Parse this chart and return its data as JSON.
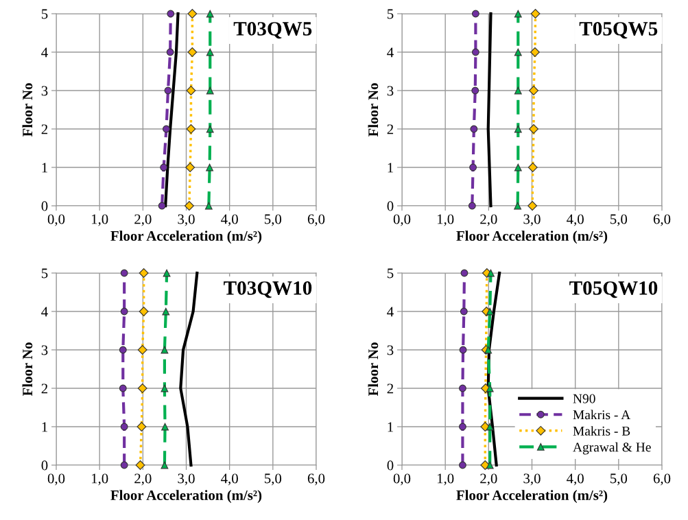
{
  "chart_data": [
    {
      "type": "line",
      "title": "T03QW5",
      "xlabel": "Floor Acceleration (m/s²)",
      "ylabel": "Floor No",
      "xlim": [
        0,
        6
      ],
      "xticks": [
        {
          "value": 0,
          "label": "0,0"
        },
        {
          "value": 1,
          "label": "1,0"
        },
        {
          "value": 2,
          "label": "2,0"
        },
        {
          "value": 3,
          "label": "3,0"
        },
        {
          "value": 4,
          "label": "4,0"
        },
        {
          "value": 5,
          "label": "5,0"
        },
        {
          "value": 6,
          "label": "6,0"
        }
      ],
      "ylim": [
        0,
        5
      ],
      "yticks": [
        0,
        1,
        2,
        3,
        4,
        5
      ],
      "grid": true,
      "legend": false,
      "series": [
        {
          "color": "#000000",
          "marker": "none",
          "line_style": "solid",
          "x": [
            2.52,
            2.57,
            2.63,
            2.7,
            2.77,
            2.81
          ],
          "values": [
            0,
            1,
            2,
            3,
            4,
            5
          ]
        },
        {
          "color": "#7030a0",
          "marker": "circle",
          "line_style": "dashed",
          "x": [
            2.44,
            2.48,
            2.54,
            2.58,
            2.63,
            2.64
          ],
          "values": [
            0,
            1,
            2,
            3,
            4,
            5
          ]
        },
        {
          "color": "#ffc000",
          "marker": "diamond",
          "line_style": "dotted",
          "x": [
            3.07,
            3.09,
            3.11,
            3.11,
            3.14,
            3.14
          ],
          "values": [
            0,
            1,
            2,
            3,
            4,
            5
          ]
        },
        {
          "color": "#00b050",
          "marker": "triangle",
          "line_style": "dashed",
          "x": [
            3.52,
            3.54,
            3.55,
            3.55,
            3.55,
            3.55
          ],
          "values": [
            0,
            1,
            2,
            3,
            4,
            5
          ]
        }
      ]
    },
    {
      "type": "line",
      "title": "T05QW5",
      "xlabel": "Floor Acceleration (m/s²)",
      "ylabel": "Floor No",
      "xlim": [
        0,
        6
      ],
      "xticks": [
        {
          "value": 0,
          "label": "0,0"
        },
        {
          "value": 1,
          "label": "1,0"
        },
        {
          "value": 2,
          "label": "2,0"
        },
        {
          "value": 3,
          "label": "3,0"
        },
        {
          "value": 4,
          "label": "4,0"
        },
        {
          "value": 5,
          "label": "5,0"
        },
        {
          "value": 6,
          "label": "6,0"
        }
      ],
      "ylim": [
        0,
        5
      ],
      "yticks": [
        0,
        1,
        2,
        3,
        4,
        5
      ],
      "grid": true,
      "legend": false,
      "series": [
        {
          "color": "#000000",
          "marker": "none",
          "line_style": "solid",
          "x": [
            2.05,
            2.02,
            1.99,
            2.01,
            2.03,
            2.05
          ],
          "values": [
            0,
            1,
            2,
            3,
            4,
            5
          ]
        },
        {
          "color": "#7030a0",
          "marker": "circle",
          "line_style": "dashed",
          "x": [
            1.62,
            1.64,
            1.66,
            1.69,
            1.7,
            1.7
          ],
          "values": [
            0,
            1,
            2,
            3,
            4,
            5
          ]
        },
        {
          "color": "#ffc000",
          "marker": "diamond",
          "line_style": "dotted",
          "x": [
            3.01,
            3.02,
            3.04,
            3.04,
            3.07,
            3.08
          ],
          "values": [
            0,
            1,
            2,
            3,
            4,
            5
          ]
        },
        {
          "color": "#00b050",
          "marker": "triangle",
          "line_style": "dashed",
          "x": [
            2.67,
            2.68,
            2.68,
            2.68,
            2.68,
            2.68
          ],
          "values": [
            0,
            1,
            2,
            3,
            4,
            5
          ]
        }
      ]
    },
    {
      "type": "line",
      "title": "T03QW10",
      "xlabel": "Floor Acceleration (m/s²)",
      "ylabel": "Floor No",
      "xlim": [
        0,
        6
      ],
      "xticks": [
        {
          "value": 0,
          "label": "0,0"
        },
        {
          "value": 1,
          "label": "1,0"
        },
        {
          "value": 2,
          "label": "2,0"
        },
        {
          "value": 3,
          "label": "3,0"
        },
        {
          "value": 4,
          "label": "4,0"
        },
        {
          "value": 5,
          "label": "5,0"
        },
        {
          "value": 6,
          "label": "6,0"
        }
      ],
      "ylim": [
        0,
        5
      ],
      "yticks": [
        0,
        1,
        2,
        3,
        4,
        5
      ],
      "grid": true,
      "legend": false,
      "series": [
        {
          "color": "#000000",
          "marker": "none",
          "line_style": "solid",
          "x": [
            3.11,
            3.03,
            2.87,
            2.93,
            3.16,
            3.25
          ],
          "values": [
            0,
            1,
            2,
            3,
            4,
            5
          ]
        },
        {
          "color": "#7030a0",
          "marker": "circle",
          "line_style": "dashed",
          "x": [
            1.57,
            1.57,
            1.54,
            1.54,
            1.57,
            1.57
          ],
          "values": [
            0,
            1,
            2,
            3,
            4,
            5
          ]
        },
        {
          "color": "#ffc000",
          "marker": "diamond",
          "line_style": "dotted",
          "x": [
            1.94,
            1.97,
            1.99,
            1.99,
            2.02,
            2.02
          ],
          "values": [
            0,
            1,
            2,
            3,
            4,
            5
          ]
        },
        {
          "color": "#00b050",
          "marker": "triangle",
          "line_style": "dashed",
          "x": [
            2.5,
            2.51,
            2.5,
            2.5,
            2.53,
            2.55
          ],
          "values": [
            0,
            1,
            2,
            3,
            4,
            5
          ]
        }
      ]
    },
    {
      "type": "line",
      "title": "T05QW10",
      "xlabel": "Floor Acceleration (m/s²)",
      "ylabel": "Floor No",
      "xlim": [
        0,
        6
      ],
      "xticks": [
        {
          "value": 0,
          "label": "0,0"
        },
        {
          "value": 1,
          "label": "1,0"
        },
        {
          "value": 2,
          "label": "2,0"
        },
        {
          "value": 3,
          "label": "3,0"
        },
        {
          "value": 4,
          "label": "4,0"
        },
        {
          "value": 5,
          "label": "5,0"
        },
        {
          "value": 6,
          "label": "6,0"
        }
      ],
      "ylim": [
        0,
        5
      ],
      "yticks": [
        0,
        1,
        2,
        3,
        4,
        5
      ],
      "grid": true,
      "legend": "bottom right",
      "series": [
        {
          "name": "N90",
          "color": "#000000",
          "marker": "none",
          "line_style": "solid",
          "x": [
            2.18,
            2.09,
            1.99,
            2.01,
            2.12,
            2.25
          ],
          "values": [
            0,
            1,
            2,
            3,
            4,
            5
          ]
        },
        {
          "name": "Makris - A",
          "color": "#7030a0",
          "marker": "circle",
          "line_style": "dashed",
          "x": [
            1.4,
            1.4,
            1.4,
            1.41,
            1.43,
            1.44
          ],
          "values": [
            0,
            1,
            2,
            3,
            4,
            5
          ]
        },
        {
          "name": "Makris - B",
          "color": "#ffc000",
          "marker": "diamond",
          "line_style": "dotted",
          "x": [
            1.92,
            1.92,
            1.93,
            1.94,
            1.95,
            1.96
          ],
          "values": [
            0,
            1,
            2,
            3,
            4,
            5
          ]
        },
        {
          "name": "Agrawal & He",
          "color": "#00b050",
          "marker": "triangle",
          "line_style": "dashed",
          "x": [
            2.03,
            2.03,
            2.03,
            1.99,
            2.03,
            2.05
          ],
          "values": [
            0,
            1,
            2,
            3,
            4,
            5
          ]
        }
      ]
    }
  ]
}
